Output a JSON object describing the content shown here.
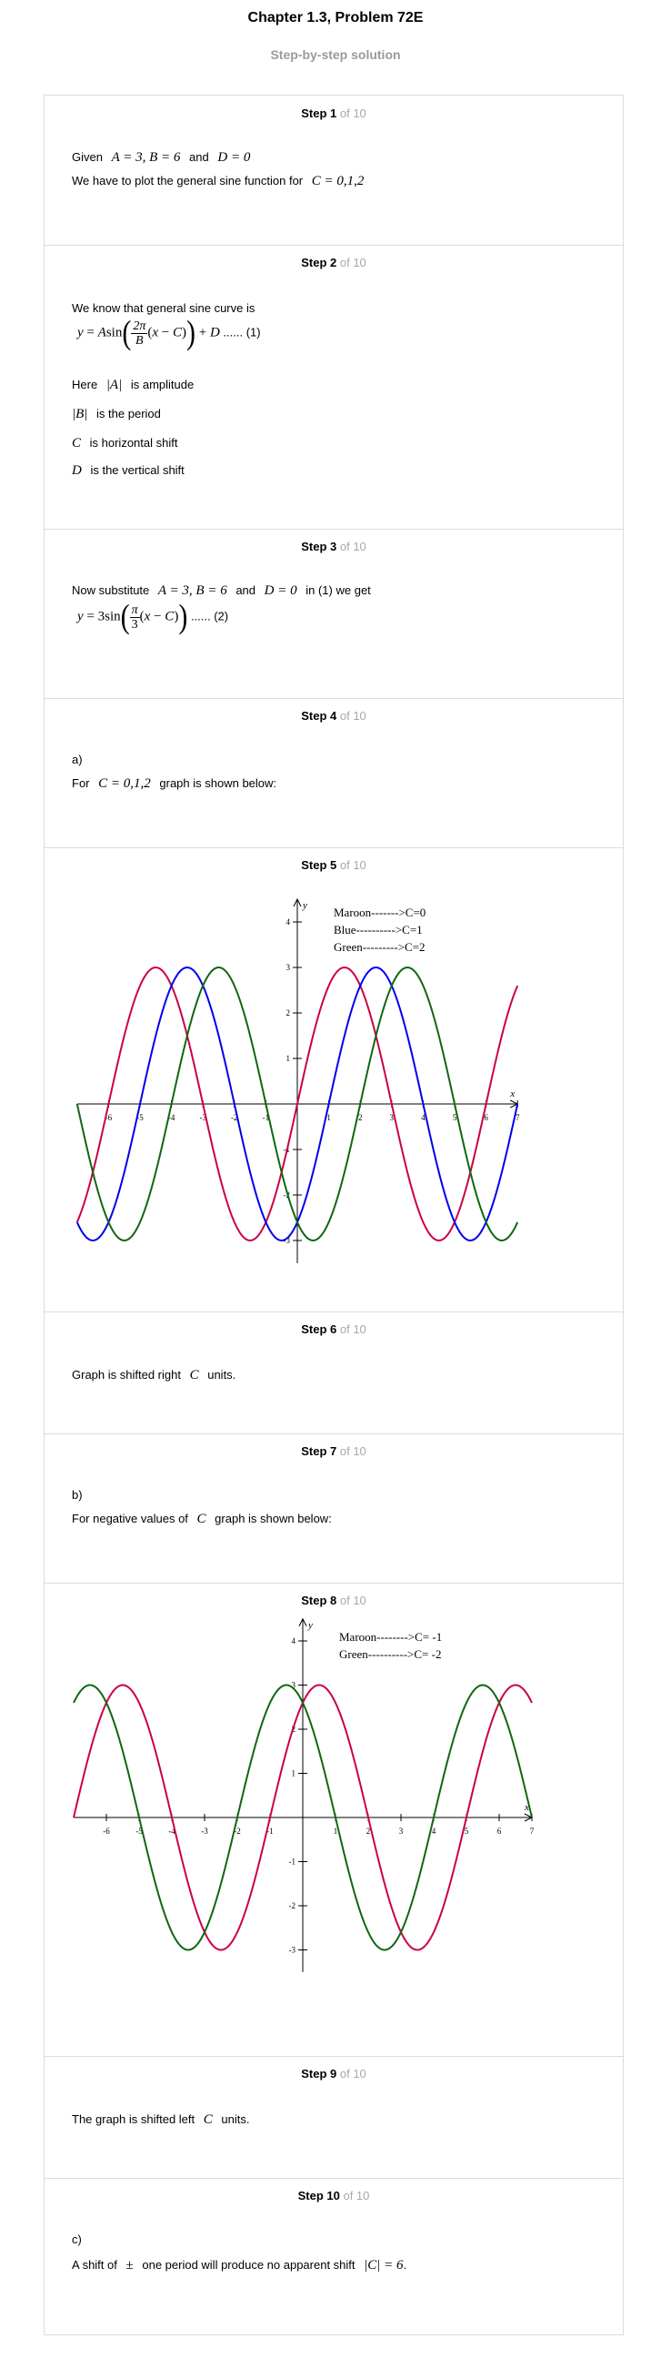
{
  "header": {
    "title": "Chapter 1.3, Problem 72E",
    "subtitle": "Step-by-step solution"
  },
  "of_label": "of 10",
  "steps": [
    {
      "number": "Step 1",
      "given": "Given",
      "given_vals": "A = 3, B = 6",
      "and": "and",
      "d_val": "D = 0",
      "plot_text": "We have to plot the general sine function for",
      "c_vals": "C = 0,1,2"
    },
    {
      "number": "Step 2",
      "intro": "We know that general sine curve is",
      "eq_label": "...... (1)",
      "here": "Here",
      "abs_a": "|A|",
      "amp": "is amplitude",
      "abs_b": "|B|",
      "period": "is the period",
      "c": "C",
      "hshift": "is horizontal shift",
      "d": "D",
      "vshift": "is the vertical shift"
    },
    {
      "number": "Step 3",
      "sub_text": "Now substitute",
      "sub_vals": "A = 3, B = 6",
      "and": "and",
      "d_val": "D = 0",
      "tail": "in (1) we get",
      "eq_label": "...... (2)"
    },
    {
      "number": "Step 4",
      "part": "a)",
      "for": "For",
      "c_vals": "C = 0,1,2",
      "graph_text": "graph is shown below:"
    },
    {
      "number": "Step 5"
    },
    {
      "number": "Step 6",
      "text_a": "Graph is shifted right",
      "c": "C",
      "text_b": "units."
    },
    {
      "number": "Step 7",
      "part": "b)",
      "text_a": "For negative values of",
      "c": "C",
      "text_b": "graph is shown below:"
    },
    {
      "number": "Step 8"
    },
    {
      "number": "Step 9",
      "text_a": "The graph is shifted left",
      "c": "C",
      "text_b": "units."
    },
    {
      "number": "Step 10",
      "part": "c)",
      "text_a": "A shift of",
      "pm": "±",
      "text_b": "one period will produce no apparent shift",
      "abs_c": "|C| = 6",
      "dot": "."
    }
  ],
  "chart_data": [
    {
      "type": "line",
      "function": "y = 3 sin((π/3)(x − C))",
      "xlabel": "x",
      "ylabel": "y",
      "xlim": [
        -7,
        7
      ],
      "ylim": [
        -3.5,
        4.5
      ],
      "x_ticks": [
        -6,
        -5,
        -4,
        -3,
        -2,
        -1,
        1,
        2,
        3,
        4,
        5,
        6,
        7
      ],
      "y_ticks": [
        -3,
        -2,
        -1,
        1,
        2,
        3,
        4
      ],
      "legend": [
        "Maroon------->C=0",
        "Blue---------->C=1",
        "Green--------->C=2"
      ],
      "series": [
        {
          "name": "C=0",
          "C": 0,
          "color": "#cc0044"
        },
        {
          "name": "C=1",
          "C": 1,
          "color": "#0000ee"
        },
        {
          "name": "C=2",
          "C": 2,
          "color": "#116611"
        }
      ]
    },
    {
      "type": "line",
      "function": "y = 3 sin((π/3)(x − C))",
      "xlabel": "x",
      "ylabel": "y",
      "xlim": [
        -7,
        7
      ],
      "ylim": [
        -3.5,
        4.5
      ],
      "x_ticks": [
        -6,
        -5,
        -4,
        -3,
        -2,
        -1,
        1,
        2,
        3,
        4,
        5,
        6,
        7
      ],
      "y_ticks": [
        -3,
        -2,
        -1,
        1,
        2,
        3,
        4
      ],
      "legend": [
        "Maroon-------->C= -1",
        "Green---------->C= -2"
      ],
      "series": [
        {
          "name": "C= -1",
          "C": -1,
          "color": "#cc0044"
        },
        {
          "name": "C= -2",
          "C": -2,
          "color": "#116611"
        }
      ]
    }
  ]
}
